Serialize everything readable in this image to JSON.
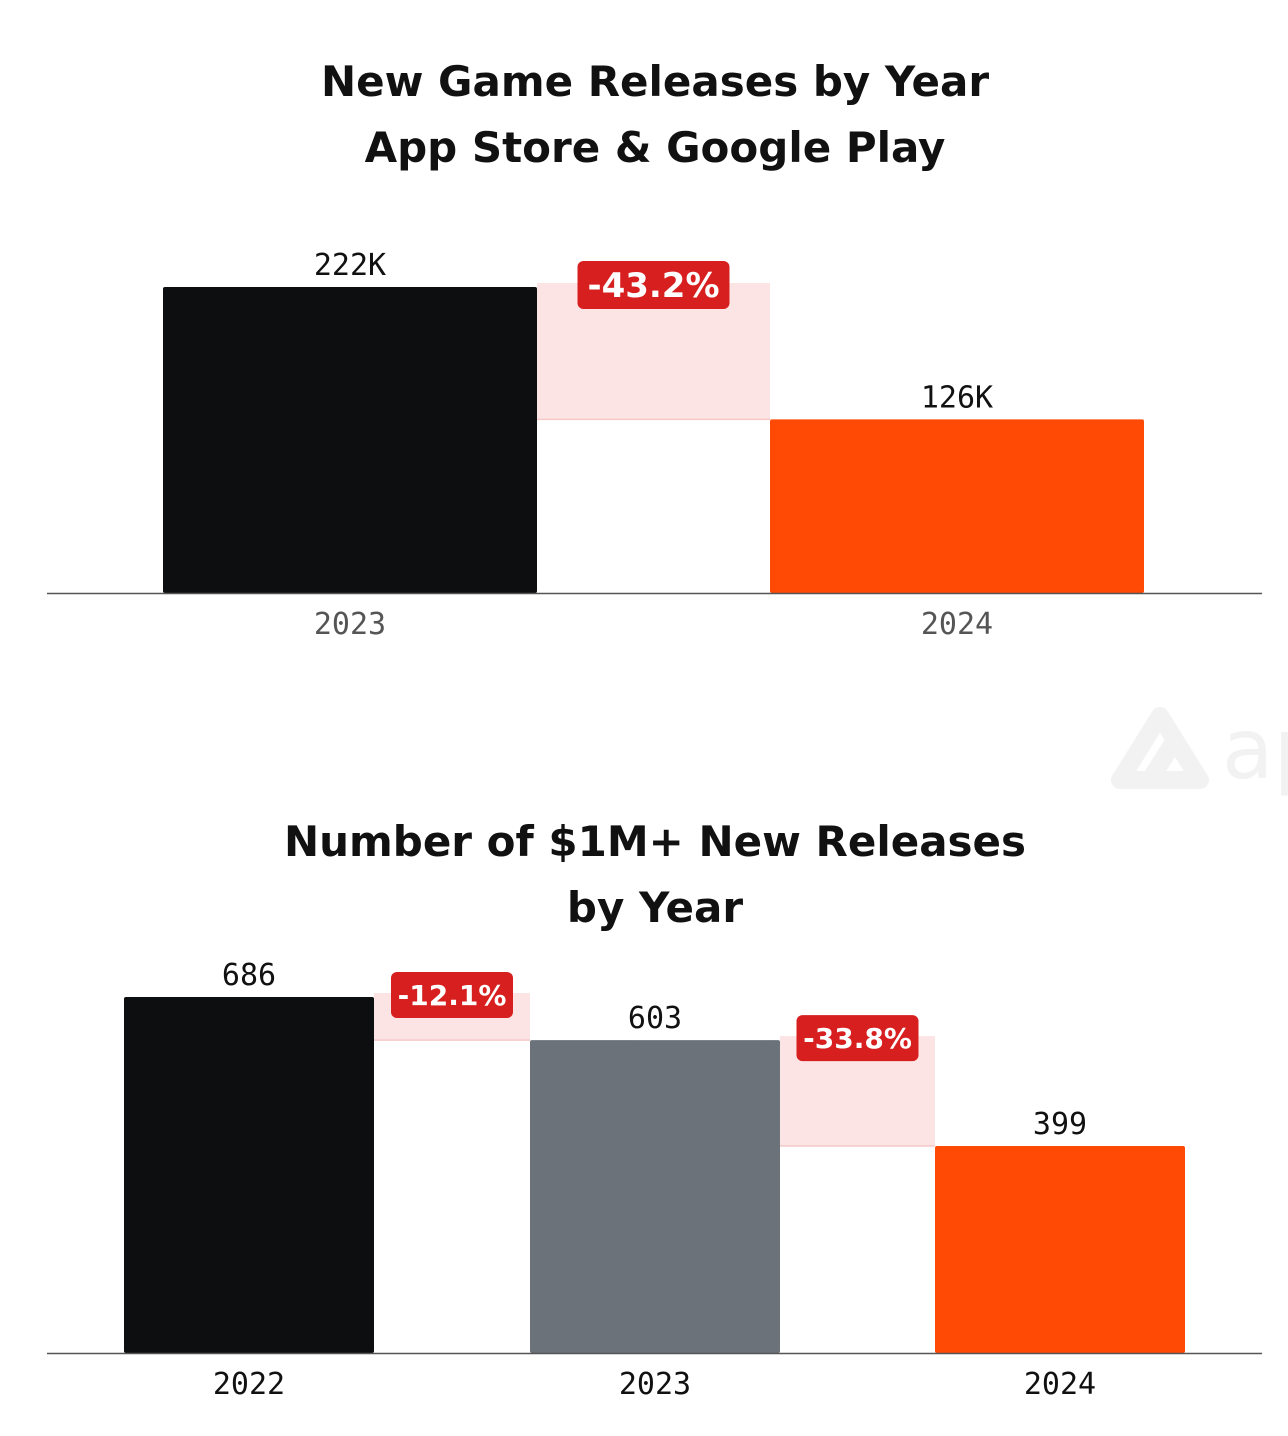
{
  "chart_data": [
    {
      "type": "bar",
      "title": "New Game Releases by Year",
      "subtitle": "App Store & Google Play",
      "categories": [
        "2023",
        "2024"
      ],
      "values": [
        222,
        126
      ],
      "value_labels": [
        "222K",
        "126K"
      ],
      "changes": [
        "-43.2%"
      ],
      "bar_colors": [
        "#0d0e10",
        "#ff4a05"
      ],
      "ylim": [
        0,
        232
      ]
    },
    {
      "type": "bar",
      "title": "Number of $1M+ New Releases",
      "subtitle": "by Year",
      "categories": [
        "2022",
        "2023",
        "2024"
      ],
      "values": [
        686,
        603,
        399
      ],
      "value_labels": [
        "686",
        "603",
        "399"
      ],
      "changes": [
        "-12.1%",
        "-33.8%"
      ],
      "bar_colors": [
        "#0d0e10",
        "#6b7279",
        "#ff4a05"
      ],
      "ylim": [
        0,
        686
      ]
    }
  ],
  "colors": {
    "change_band": "#fde4e4",
    "change_badge": "#d71f1f",
    "axis": "#555555"
  },
  "watermark": {
    "text": "ap"
  }
}
